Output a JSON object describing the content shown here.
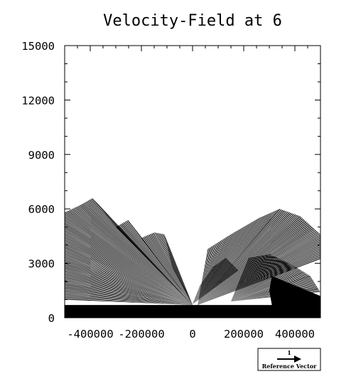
{
  "chart_data": {
    "type": "vector",
    "title": "Velocity-Field at 6",
    "xlabel": "",
    "ylabel": "",
    "xlim": [
      -500000,
      500000
    ],
    "ylim": [
      0,
      15000
    ],
    "x_ticks": [
      -400000,
      -200000,
      0,
      200000,
      400000
    ],
    "x_tick_labels": [
      "-400000",
      "-200000",
      "0",
      "200000",
      "400000"
    ],
    "y_ticks": [
      0,
      3000,
      6000,
      9000,
      12000,
      15000
    ],
    "y_tick_labels": [
      "0",
      "3000",
      "6000",
      "9000",
      "12000",
      "15000"
    ],
    "grid": false,
    "reference_vector": {
      "magnitude_label": "1",
      "label": "Reference Vector"
    },
    "vectors": [
      {
        "x": -480000,
        "y": 1500,
        "u": 1.0,
        "v": 0.15
      },
      {
        "x": -480000,
        "y": 3000,
        "u": 1.0,
        "v": 0.12
      },
      {
        "x": -480000,
        "y": 4500,
        "u": 1.0,
        "v": 0.1
      },
      {
        "x": -400000,
        "y": 2000,
        "u": 0.95,
        "v": 0.2
      },
      {
        "x": -400000,
        "y": 4000,
        "u": 0.95,
        "v": 0.15
      },
      {
        "x": -400000,
        "y": 6000,
        "u": 0.9,
        "v": 0.12
      },
      {
        "x": -300000,
        "y": 2500,
        "u": 0.9,
        "v": 0.25
      },
      {
        "x": -300000,
        "y": 4500,
        "u": 0.85,
        "v": 0.2
      },
      {
        "x": -200000,
        "y": 2000,
        "u": 0.85,
        "v": 0.3
      },
      {
        "x": -200000,
        "y": 4000,
        "u": 0.8,
        "v": 0.25
      },
      {
        "x": -100000,
        "y": 2500,
        "u": 0.7,
        "v": 0.35
      },
      {
        "x": 100000,
        "y": 3000,
        "u": -0.8,
        "v": -0.2
      },
      {
        "x": 200000,
        "y": 4000,
        "u": -0.9,
        "v": -0.15
      },
      {
        "x": 300000,
        "y": 5000,
        "u": -1.0,
        "v": -0.12
      },
      {
        "x": 400000,
        "y": 4000,
        "u": -1.0,
        "v": -0.1
      },
      {
        "x": 450000,
        "y": 3000,
        "u": -1.0,
        "v": -0.1
      }
    ]
  }
}
